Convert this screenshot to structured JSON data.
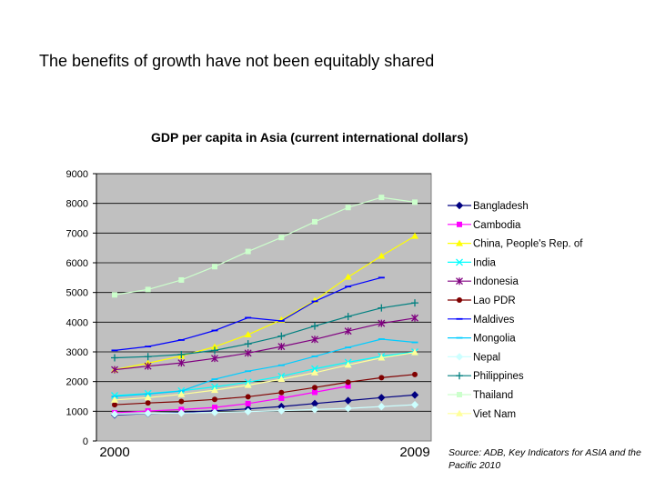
{
  "slide": {
    "title": "The benefits of growth have not been equitably shared",
    "source": "Source: ADB, Key Indicators for ASIA and the Pacific 2010"
  },
  "chart_data": {
    "type": "line",
    "title": "GDP per capita in Asia (current international dollars)",
    "xlabel": "",
    "ylabel": "",
    "ylim": [
      0,
      9000
    ],
    "yticks": [
      0,
      1000,
      2000,
      3000,
      4000,
      5000,
      6000,
      7000,
      8000,
      9000
    ],
    "x": [
      2000,
      2001,
      2002,
      2003,
      2004,
      2005,
      2006,
      2007,
      2008,
      2009
    ],
    "x_tick_labels": [
      "2000",
      "2009"
    ],
    "grid": "horizontal",
    "plot_background": "#c0c0c0",
    "legend_position": "right",
    "series": [
      {
        "name": "Bangladesh",
        "color": "#000080",
        "marker": "diamond",
        "values": [
          880,
          920,
          960,
          1020,
          1080,
          1160,
          1260,
          1360,
          1460,
          1550
        ]
      },
      {
        "name": "Cambodia",
        "color": "#ff00ff",
        "marker": "square",
        "values": [
          950,
          1010,
          1060,
          1130,
          1260,
          1440,
          1640,
          1850,
          null,
          null
        ]
      },
      {
        "name": "China, People's Rep. of",
        "color": "#ffff00",
        "marker": "triangle",
        "values": [
          2400,
          2620,
          2860,
          3170,
          3580,
          4080,
          4730,
          5520,
          6230,
          6900
        ]
      },
      {
        "name": "India",
        "color": "#00ffff",
        "marker": "x",
        "values": [
          1530,
          1600,
          1690,
          1820,
          1980,
          2180,
          2430,
          2650,
          2850,
          3000
        ]
      },
      {
        "name": "Indonesia",
        "color": "#800080",
        "marker": "star",
        "values": [
          2400,
          2520,
          2630,
          2780,
          2960,
          3180,
          3420,
          3700,
          3960,
          4140
        ]
      },
      {
        "name": "Lao PDR",
        "color": "#800000",
        "marker": "circle",
        "values": [
          1220,
          1280,
          1330,
          1400,
          1490,
          1630,
          1800,
          1980,
          2130,
          2240
        ]
      },
      {
        "name": "Maldives",
        "color": "#0000ff",
        "marker": "dash",
        "values": [
          3050,
          3180,
          3400,
          3720,
          4150,
          4040,
          4700,
          5200,
          5500,
          null
        ]
      },
      {
        "name": "Mongolia",
        "color": "#00ccff",
        "marker": "dash",
        "values": [
          1500,
          1580,
          1680,
          2080,
          2350,
          2550,
          2850,
          3150,
          3430,
          3320
        ]
      },
      {
        "name": "Nepal",
        "color": "#ccffff",
        "marker": "diamond",
        "values": [
          900,
          930,
          940,
          960,
          990,
          1020,
          1060,
          1100,
          1160,
          1220
        ]
      },
      {
        "name": "Philippines",
        "color": "#008080",
        "marker": "plus",
        "values": [
          2800,
          2840,
          2910,
          3050,
          3270,
          3530,
          3870,
          4190,
          4480,
          4650
        ]
      },
      {
        "name": "Thailand",
        "color": "#ccffcc",
        "marker": "square",
        "values": [
          4920,
          5100,
          5420,
          5870,
          6380,
          6850,
          7380,
          7860,
          8200,
          8040
        ]
      },
      {
        "name": "Viet Nam",
        "color": "#ffff99",
        "marker": "triangle",
        "values": [
          1380,
          1460,
          1570,
          1710,
          1880,
          2080,
          2300,
          2560,
          2800,
          2980
        ]
      }
    ]
  }
}
